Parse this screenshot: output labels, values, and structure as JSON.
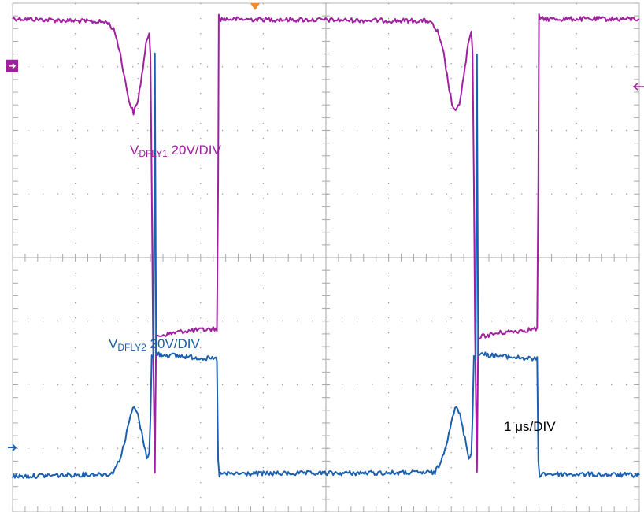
{
  "chart_data": {
    "type": "line",
    "title": "",
    "xlabel": "",
    "ylabel": "",
    "grid": true,
    "timebase": {
      "label_main": "1 ",
      "label_unit": "μs/DIV"
    },
    "x_range": [
      0,
      10
    ],
    "y_range": [
      -4,
      4
    ],
    "series": [
      {
        "key": "dfly1",
        "label_main": "V",
        "label_sub": "DFLY1",
        "label_scale": " 20V/DIV",
        "color": "#a020a0",
        "marker": "ch1-ground-marker",
        "ground_level": 3,
        "points": [
          [
            0,
            3.76
          ],
          [
            1.52,
            3.7
          ],
          [
            1.63,
            3.55
          ],
          [
            1.72,
            3.2
          ],
          [
            1.8,
            2.75
          ],
          [
            1.87,
            2.42
          ],
          [
            1.93,
            2.28
          ],
          [
            1.99,
            2.42
          ],
          [
            2.06,
            2.85
          ],
          [
            2.13,
            3.35
          ],
          [
            2.18,
            3.55
          ],
          [
            2.2,
            3.2
          ],
          [
            2.22,
            1.2
          ],
          [
            2.24,
            -1.2
          ],
          [
            2.27,
            -3.4
          ],
          [
            2.29,
            -1.25
          ],
          [
            2.33,
            -1.23
          ],
          [
            2.7,
            -1.16
          ],
          [
            3.26,
            -1.12
          ],
          [
            3.28,
            1.2
          ],
          [
            3.29,
            3.8
          ],
          [
            3.32,
            3.75
          ],
          [
            6.65,
            3.72
          ],
          [
            6.78,
            3.55
          ],
          [
            6.88,
            3.2
          ],
          [
            6.95,
            2.75
          ],
          [
            7.01,
            2.42
          ],
          [
            7.07,
            2.28
          ],
          [
            7.13,
            2.42
          ],
          [
            7.2,
            2.85
          ],
          [
            7.27,
            3.35
          ],
          [
            7.32,
            3.55
          ],
          [
            7.34,
            3.2
          ],
          [
            7.36,
            1.2
          ],
          [
            7.38,
            -1.2
          ],
          [
            7.41,
            -3.4
          ],
          [
            7.43,
            -1.25
          ],
          [
            7.47,
            -1.24
          ],
          [
            7.8,
            -1.18
          ],
          [
            8.37,
            -1.12
          ],
          [
            8.39,
            1.2
          ],
          [
            8.4,
            3.8
          ],
          [
            8.44,
            3.75
          ],
          [
            10,
            3.75
          ]
        ]
      },
      {
        "key": "dfly2",
        "label_main": "V",
        "label_sub": "DFLY2",
        "label_scale": " 20V/DIV",
        "color": "#1a5fb0",
        "marker": "ch2-ground-marker",
        "ground_level": -3,
        "points": [
          [
            0,
            -3.44
          ],
          [
            1.58,
            -3.4
          ],
          [
            1.7,
            -3.2
          ],
          [
            1.8,
            -2.85
          ],
          [
            1.88,
            -2.48
          ],
          [
            1.94,
            -2.35
          ],
          [
            2.0,
            -2.48
          ],
          [
            2.08,
            -2.85
          ],
          [
            2.14,
            -3.15
          ],
          [
            2.18,
            -3.05
          ],
          [
            2.2,
            -2.5
          ],
          [
            2.22,
            -1.55
          ],
          [
            2.25,
            -1.6
          ],
          [
            2.27,
            3.2
          ],
          [
            2.29,
            -1.5
          ],
          [
            2.33,
            -1.52
          ],
          [
            2.7,
            -1.55
          ],
          [
            3.26,
            -1.6
          ],
          [
            3.28,
            -3.2
          ],
          [
            3.3,
            -3.42
          ],
          [
            3.34,
            -3.4
          ],
          [
            6.74,
            -3.38
          ],
          [
            6.84,
            -3.2
          ],
          [
            6.94,
            -2.85
          ],
          [
            7.02,
            -2.48
          ],
          [
            7.08,
            -2.35
          ],
          [
            7.14,
            -2.48
          ],
          [
            7.22,
            -2.85
          ],
          [
            7.28,
            -3.15
          ],
          [
            7.32,
            -3.05
          ],
          [
            7.34,
            -2.5
          ],
          [
            7.36,
            -1.55
          ],
          [
            7.39,
            -1.6
          ],
          [
            7.41,
            3.2
          ],
          [
            7.43,
            -1.5
          ],
          [
            7.47,
            -1.52
          ],
          [
            7.8,
            -1.55
          ],
          [
            8.37,
            -1.6
          ],
          [
            8.39,
            -3.2
          ],
          [
            8.41,
            -3.42
          ],
          [
            8.45,
            -3.4
          ],
          [
            10,
            -3.42
          ]
        ]
      }
    ],
    "colors": {
      "grid_center": "#a8a8a8",
      "grid_dot": "#9a9a9a",
      "border": "#b8b8b8",
      "trigger": "#f28a2e",
      "trigger_level_arrow": "#a020a0",
      "timebase_text": "#000000"
    }
  }
}
